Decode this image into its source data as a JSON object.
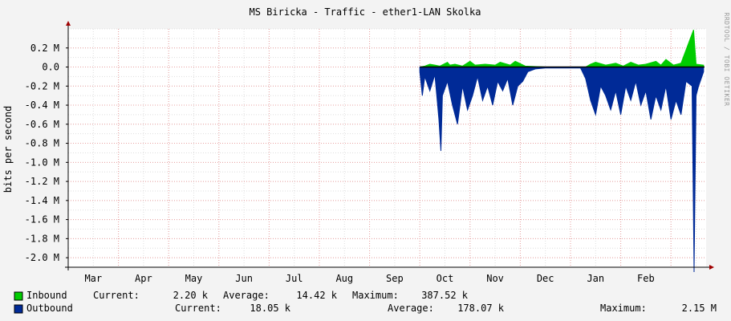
{
  "chart_data": {
    "type": "area",
    "title": "MS Biricka - Traffic - ether1-LAN Skolka",
    "ylabel": "bits per second",
    "watermark": "RRDTOOL / TOBI OETIKER",
    "ylim": [
      -2.1,
      0.4
    ],
    "y_ticks": [
      {
        "value": 0.2,
        "label": "0.2 M"
      },
      {
        "value": 0.0,
        "label": "0.0"
      },
      {
        "value": -0.2,
        "label": "-0.2 M"
      },
      {
        "value": -0.4,
        "label": "-0.4 M"
      },
      {
        "value": -0.6,
        "label": "-0.6 M"
      },
      {
        "value": -0.8,
        "label": "-0.8 M"
      },
      {
        "value": -1.0,
        "label": "-1.0 M"
      },
      {
        "value": -1.2,
        "label": "-1.2 M"
      },
      {
        "value": -1.4,
        "label": "-1.4 M"
      },
      {
        "value": -1.6,
        "label": "-1.6 M"
      },
      {
        "value": -1.8,
        "label": "-1.8 M"
      },
      {
        "value": -2.0,
        "label": "-2.0 M"
      }
    ],
    "x_labels": [
      "Mar",
      "Apr",
      "May",
      "Jun",
      "Jul",
      "Aug",
      "Sep",
      "Oct",
      "Nov",
      "Dec",
      "Jan",
      "Feb"
    ],
    "xlim": [
      0,
      12.7
    ],
    "series": [
      {
        "name": "Inbound",
        "color": "#00cc00",
        "values_at": [
          [
            7.0,
            0.0
          ],
          [
            7.1,
            0.01
          ],
          [
            7.2,
            0.03
          ],
          [
            7.3,
            0.02
          ],
          [
            7.4,
            0.01
          ],
          [
            7.55,
            0.05
          ],
          [
            7.6,
            0.02
          ],
          [
            7.7,
            0.03
          ],
          [
            7.85,
            0.01
          ],
          [
            8.0,
            0.06
          ],
          [
            8.1,
            0.02
          ],
          [
            8.3,
            0.03
          ],
          [
            8.5,
            0.02
          ],
          [
            8.6,
            0.05
          ],
          [
            8.8,
            0.02
          ],
          [
            8.9,
            0.06
          ],
          [
            9.1,
            0.01
          ],
          [
            9.5,
            0.0
          ],
          [
            10.3,
            0.0
          ],
          [
            10.4,
            0.03
          ],
          [
            10.5,
            0.05
          ],
          [
            10.7,
            0.02
          ],
          [
            10.9,
            0.04
          ],
          [
            11.05,
            0.01
          ],
          [
            11.2,
            0.05
          ],
          [
            11.35,
            0.02
          ],
          [
            11.5,
            0.03
          ],
          [
            11.7,
            0.06
          ],
          [
            11.8,
            0.02
          ],
          [
            11.9,
            0.08
          ],
          [
            12.05,
            0.02
          ],
          [
            12.2,
            0.04
          ],
          [
            12.45,
            0.39
          ],
          [
            12.5,
            0.03
          ],
          [
            12.65,
            0.02
          ]
        ]
      },
      {
        "name": "Outbound",
        "color": "#002a97",
        "values_at": [
          [
            7.0,
            -0.05
          ],
          [
            7.05,
            -0.3
          ],
          [
            7.1,
            -0.1
          ],
          [
            7.2,
            -0.25
          ],
          [
            7.3,
            -0.08
          ],
          [
            7.38,
            -0.55
          ],
          [
            7.42,
            -0.88
          ],
          [
            7.45,
            -0.3
          ],
          [
            7.55,
            -0.15
          ],
          [
            7.65,
            -0.4
          ],
          [
            7.75,
            -0.6
          ],
          [
            7.85,
            -0.2
          ],
          [
            7.95,
            -0.45
          ],
          [
            8.05,
            -0.3
          ],
          [
            8.15,
            -0.1
          ],
          [
            8.25,
            -0.35
          ],
          [
            8.35,
            -0.2
          ],
          [
            8.45,
            -0.4
          ],
          [
            8.55,
            -0.15
          ],
          [
            8.65,
            -0.25
          ],
          [
            8.75,
            -0.12
          ],
          [
            8.85,
            -0.4
          ],
          [
            8.95,
            -0.2
          ],
          [
            9.05,
            -0.15
          ],
          [
            9.15,
            -0.05
          ],
          [
            9.3,
            -0.02
          ],
          [
            9.5,
            -0.01
          ],
          [
            10.2,
            -0.01
          ],
          [
            10.3,
            -0.12
          ],
          [
            10.4,
            -0.35
          ],
          [
            10.5,
            -0.5
          ],
          [
            10.6,
            -0.2
          ],
          [
            10.7,
            -0.3
          ],
          [
            10.8,
            -0.45
          ],
          [
            10.9,
            -0.25
          ],
          [
            11.0,
            -0.5
          ],
          [
            11.1,
            -0.2
          ],
          [
            11.2,
            -0.35
          ],
          [
            11.3,
            -0.15
          ],
          [
            11.4,
            -0.4
          ],
          [
            11.5,
            -0.25
          ],
          [
            11.6,
            -0.55
          ],
          [
            11.7,
            -0.3
          ],
          [
            11.8,
            -0.45
          ],
          [
            11.9,
            -0.2
          ],
          [
            12.0,
            -0.55
          ],
          [
            12.1,
            -0.35
          ],
          [
            12.2,
            -0.5
          ],
          [
            12.3,
            -0.15
          ],
          [
            12.42,
            -0.2
          ],
          [
            12.46,
            -2.15
          ],
          [
            12.5,
            -0.3
          ],
          [
            12.55,
            -0.2
          ],
          [
            12.65,
            -0.05
          ]
        ]
      }
    ],
    "legend": [
      {
        "name": "Inbound",
        "color": "#00cc00",
        "current_label": "Current:",
        "current": "2.20 k",
        "average_label": "Average:",
        "average": "14.42 k",
        "maximum_label": "Maximum:",
        "maximum": "387.52 k"
      },
      {
        "name": "Outbound",
        "color": "#002a97",
        "current_label": "Current:",
        "current": "18.05 k",
        "average_label": "Average:",
        "average": "178.07 k",
        "maximum_label": "Maximum:",
        "maximum": "2.15 M"
      }
    ],
    "grid": true,
    "legend_placement": "bottom"
  }
}
